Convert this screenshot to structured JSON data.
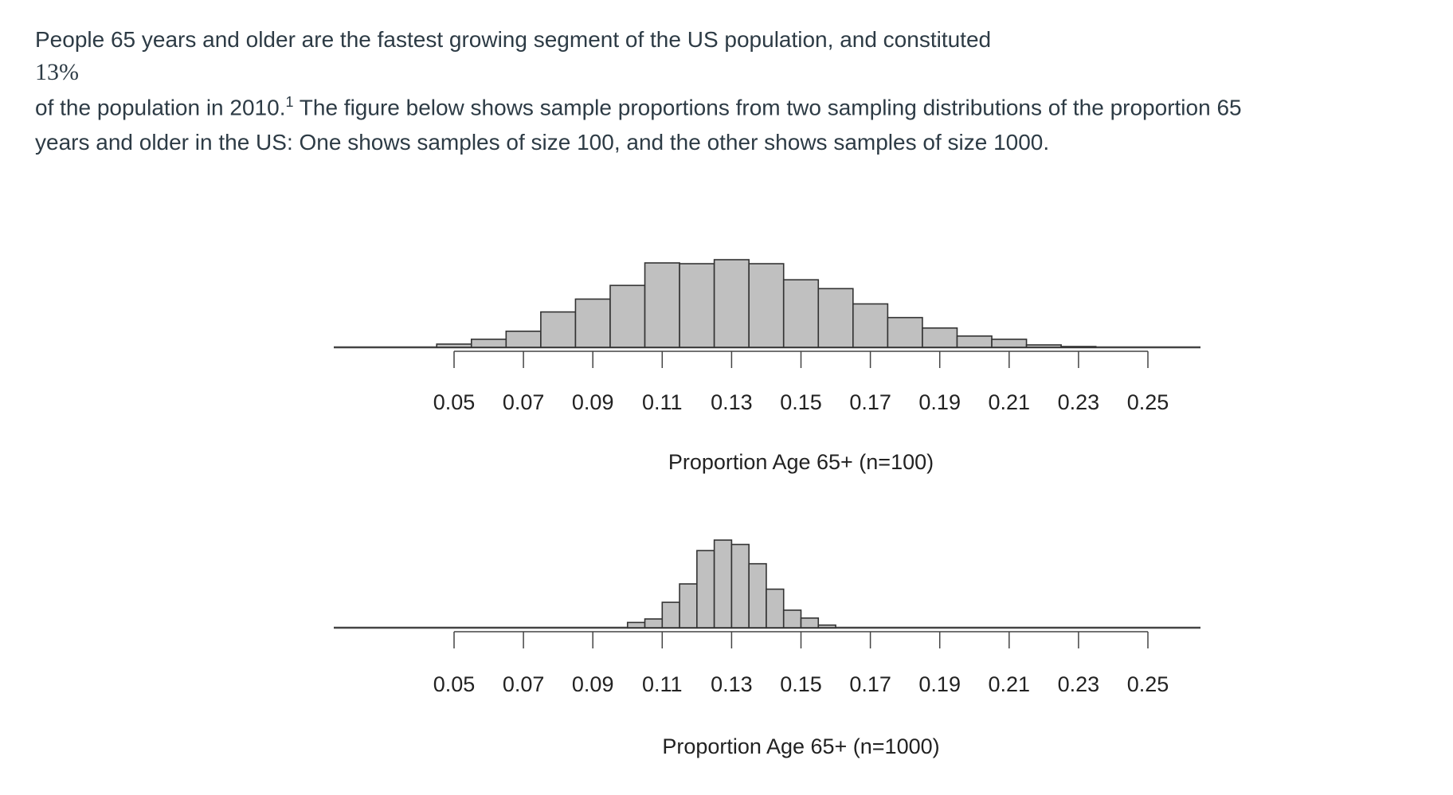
{
  "intro": {
    "line1": "People 65 years and older are the fastest growing segment of the US population, and constituted",
    "math_value": "13%",
    "line2_before_sup": "of the population in 2010.",
    "footnote_mark": "1",
    "line2_after_sup": " The figure below shows sample proportions from two sampling distributions of the proportion 65",
    "line3": "years and older in the US: One shows samples of size 100, and the other shows samples of size 1000."
  },
  "chart_data": [
    {
      "type": "bar",
      "subtype": "histogram",
      "xlabel": "Proportion Age 65+ (n=100)",
      "ylabel": "",
      "xlim": [
        0.05,
        0.25
      ],
      "tick_labels": [
        "0.05",
        "0.07",
        "0.09",
        "0.11",
        "0.13",
        "0.15",
        "0.17",
        "0.19",
        "0.21",
        "0.23",
        "0.25"
      ],
      "bin_width": 0.01,
      "bin_start": 0.045,
      "relative_heights": [
        4,
        10,
        20,
        44,
        60,
        77,
        105,
        104,
        109,
        104,
        84,
        73,
        54,
        37,
        24,
        14,
        10,
        3,
        1
      ],
      "bar_color": "#c0c0c0",
      "grid": false
    },
    {
      "type": "bar",
      "subtype": "histogram",
      "xlabel": "Proportion Age 65+ (n=1000)",
      "ylabel": "",
      "xlim": [
        0.05,
        0.25
      ],
      "tick_labels": [
        "0.05",
        "0.07",
        "0.09",
        "0.11",
        "0.13",
        "0.15",
        "0.17",
        "0.19",
        "0.21",
        "0.23",
        "0.25"
      ],
      "bin_width": 0.005,
      "bin_start": 0.1,
      "relative_heights": [
        6,
        10,
        29,
        50,
        88,
        100,
        95,
        73,
        44,
        20,
        11,
        3
      ],
      "bar_color": "#c0c0c0",
      "grid": false
    }
  ]
}
